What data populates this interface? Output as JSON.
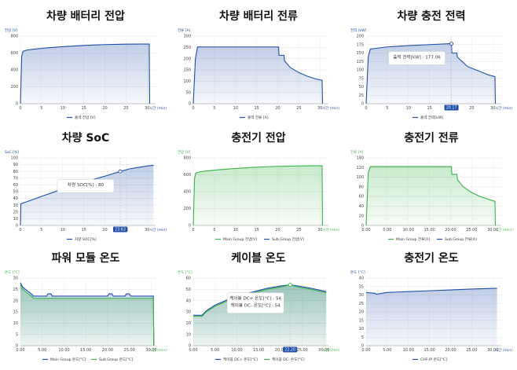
{
  "charts": [
    {
      "title": "차량 배터리 전압",
      "type": "area",
      "color": "#1f4fa8",
      "ylabel": "전압 [V]",
      "xlabel": "시간 (min)",
      "ylim": [
        0,
        800
      ],
      "yticks": [
        "0",
        "200",
        "400",
        "600",
        "800"
      ],
      "xlim": [
        0,
        32
      ],
      "xticks": [
        "0",
        "5",
        "10",
        "15",
        "20",
        "25",
        "30"
      ],
      "xtick_values": [
        0,
        5,
        10,
        15,
        20,
        25,
        30
      ],
      "series": [
        {
          "name": "출력 전압 [V]",
          "color": "#1f4fa8",
          "x": [
            0,
            0.3,
            0.6,
            1.5,
            3,
            6,
            10,
            15,
            20,
            25,
            28,
            30.5,
            30.6
          ],
          "y": [
            0,
            560,
            620,
            635,
            645,
            660,
            675,
            690,
            700,
            705,
            706,
            706,
            0
          ]
        }
      ],
      "tooltip": null
    },
    {
      "title": "차량 배터리 전류",
      "type": "area",
      "color": "#1f4fa8",
      "ylabel": "전류 [A]",
      "xlabel": "시간 (min)",
      "ylim": [
        0,
        300
      ],
      "yticks": [
        "0",
        "50",
        "100",
        "150",
        "200",
        "250",
        "300"
      ],
      "xlim": [
        0,
        32
      ],
      "xticks": [
        "0",
        "5",
        "10",
        "15",
        "20",
        "25",
        "30"
      ],
      "xtick_values": [
        0,
        5,
        10,
        15,
        20,
        25,
        30
      ],
      "series": [
        {
          "name": "출력 전류 [A]",
          "color": "#1f4fa8",
          "x": [
            0,
            0.5,
            1,
            20.2,
            20.3,
            21.5,
            21.6,
            23,
            25,
            27,
            29,
            30.5,
            30.6
          ],
          "y": [
            0,
            200,
            252,
            252,
            215,
            215,
            190,
            160,
            138,
            122,
            110,
            104,
            0
          ]
        }
      ],
      "tooltip": null
    },
    {
      "title": "차량 충전 전력",
      "type": "area",
      "color": "#1f4fa8",
      "ylabel": "전력 [kW]",
      "xlabel": "시간 (min)",
      "ylim": [
        0,
        200
      ],
      "yticks": [
        "0",
        "25",
        "50",
        "75",
        "100",
        "125",
        "150",
        "175",
        "200"
      ],
      "xlim": [
        0,
        32
      ],
      "xticks": [
        "0",
        "5",
        "10",
        "15",
        "20",
        "25",
        "30"
      ],
      "xtick_values": [
        0,
        5,
        10,
        15,
        20,
        25,
        30
      ],
      "series": [
        {
          "name": "출력 전력[kW]",
          "color": "#1f4fa8",
          "x": [
            0,
            0.5,
            1,
            5,
            10,
            15,
            20.2,
            20.3,
            21.5,
            21.6,
            24,
            27,
            29,
            30.5,
            30.6
          ],
          "y": [
            0,
            140,
            162,
            168,
            172,
            175,
            178,
            150,
            150,
            138,
            110,
            95,
            85,
            80,
            0
          ]
        }
      ],
      "tooltip": {
        "text": "출력 전력[kW] : 177.06",
        "x_value": 20.2,
        "y_value": 178,
        "x_label": "20.17"
      }
    },
    {
      "title": "차량 SoC",
      "type": "area",
      "color": "#1f4fa8",
      "ylabel": "SoC [%]",
      "xlabel": "시간 (min)",
      "ylim": [
        0,
        100
      ],
      "yticks": [
        "0",
        "10",
        "20",
        "30",
        "40",
        "50",
        "60",
        "70",
        "80",
        "90",
        "100"
      ],
      "xlim": [
        0,
        32
      ],
      "xticks": [
        "0",
        "5",
        "10",
        "15",
        "20",
        "25",
        "30"
      ],
      "xtick_values": [
        0,
        5,
        10,
        15,
        20,
        25,
        30
      ],
      "series": [
        {
          "name": "차량 SOC[%]",
          "color": "#1f4fa8",
          "x": [
            0,
            0.1,
            5,
            10,
            15,
            20,
            23.63,
            26,
            28,
            30,
            31.5
          ],
          "y": [
            0,
            32,
            43,
            54,
            64,
            73,
            80,
            84,
            86,
            88,
            89
          ]
        }
      ],
      "tooltip": {
        "text": "차량 SOC[%] : 80",
        "x_value": 23.63,
        "y_value": 80,
        "x_label": "23.63"
      }
    },
    {
      "title": "충전기 전압",
      "type": "area",
      "color": "#3bb34a",
      "ylabel": "전압 [V]",
      "xlabel": "시간 (min)",
      "ylim": [
        0,
        800
      ],
      "yticks": [
        "0",
        "200",
        "400",
        "600",
        "800"
      ],
      "xlim": [
        0,
        32
      ],
      "xticks": [
        "0",
        "5",
        "10",
        "15",
        "20",
        "25",
        "30"
      ],
      "xtick_values": [
        0,
        5,
        10,
        15,
        20,
        25,
        30
      ],
      "series": [
        {
          "name": "Main Group 전압[V]",
          "color": "#3bb34a",
          "x": [
            0,
            0.3,
            0.6,
            1.5,
            3,
            6,
            10,
            15,
            20,
            25,
            28,
            30.5,
            30.6
          ],
          "y": [
            0,
            560,
            620,
            635,
            645,
            660,
            675,
            690,
            700,
            705,
            706,
            706,
            0
          ]
        },
        {
          "name": "Sub Group 전압[V]",
          "color": "#1f4fa8",
          "values": []
        }
      ],
      "tooltip": null
    },
    {
      "title": "충전기 전류",
      "type": "area",
      "color": "#3bb34a",
      "ylabel": "전류 [A]",
      "xlabel": "시간 (min)",
      "ylim": [
        0,
        140
      ],
      "yticks": [
        "0",
        "20",
        "40",
        "60",
        "80",
        "100",
        "120",
        "140"
      ],
      "xlim": [
        0,
        32
      ],
      "xticks": [
        "0.00",
        "5.00",
        "10.00",
        "15.00",
        "20.00",
        "25.00",
        "30.00"
      ],
      "xtick_values": [
        0,
        5,
        10,
        15,
        20,
        25,
        30
      ],
      "series": [
        {
          "name": "Main Group 전류[A]",
          "color": "#3bb34a",
          "x": [
            0,
            0.5,
            1,
            20.2,
            20.3,
            21.5,
            21.6,
            23,
            25,
            27,
            29,
            30.5,
            30.6
          ],
          "y": [
            0,
            110,
            122,
            122,
            106,
            106,
            95,
            80,
            68,
            60,
            54,
            50,
            0
          ]
        },
        {
          "name": "Sub Group 전류[A]",
          "color": "#1f4fa8",
          "values": []
        }
      ],
      "tooltip": null
    },
    {
      "title": "파워 모듈 온도",
      "type": "area",
      "color": "#3bb34a",
      "ylabel": "온도 [°C]",
      "xlabel": "시간 (min)",
      "ylim": [
        0,
        30
      ],
      "yticks": [
        "0",
        "5",
        "10",
        "15",
        "20",
        "25",
        "30"
      ],
      "xlim": [
        0,
        31
      ],
      "xticks": [
        "0.00",
        "5.00",
        "10.00",
        "15.00",
        "20.00",
        "25.00",
        "30.00"
      ],
      "xtick_values": [
        0,
        5,
        10,
        15,
        20,
        25,
        30
      ],
      "series": [
        {
          "name": "Main Group 온도[°C]",
          "color": "#1f4fa8",
          "x": [
            0,
            0.5,
            1.5,
            2.5,
            3,
            4,
            6,
            6.3,
            7,
            7.3,
            10,
            20,
            20.3,
            21,
            21.3,
            24,
            24.3,
            25,
            25.3,
            30.5,
            30.6
          ],
          "y": [
            28,
            26,
            24.5,
            23,
            22,
            22,
            22,
            23,
            23,
            22,
            22,
            22,
            23,
            23,
            22,
            22,
            23,
            23,
            22,
            22,
            0
          ]
        },
        {
          "name": "Sub Group 온도[°C]",
          "color": "#3bb34a",
          "x": [
            0,
            0.5,
            1.5,
            2.5,
            3,
            4,
            10,
            20,
            30.5,
            30.6
          ],
          "y": [
            27,
            25,
            23.5,
            22,
            21,
            21,
            21,
            21,
            21,
            0
          ]
        }
      ],
      "tooltip": null
    },
    {
      "title": "케이블 온도",
      "type": "area",
      "color": "#3bb34a",
      "ylabel": "온도 [°C]",
      "xlabel": "시간 (min)",
      "ylim": [
        0,
        60
      ],
      "yticks": [
        "0",
        "10",
        "20",
        "30",
        "40",
        "50",
        "60"
      ],
      "xlim": [
        0,
        31
      ],
      "xticks": [
        "0.00",
        "5.00",
        "10.00",
        "15.00",
        "20.00",
        "25.00",
        "30.00"
      ],
      "xtick_values": [
        0,
        5,
        10,
        15,
        20,
        25,
        30
      ],
      "series": [
        {
          "name": "케이블 DC+ 온도[°C]",
          "color": "#1f4fa8",
          "x": [
            0,
            2,
            3,
            5,
            8,
            11,
            14,
            17,
            20,
            22.2,
            24,
            27,
            30.5
          ],
          "y": [
            27,
            27,
            31,
            36,
            41,
            45,
            48,
            51,
            53,
            54,
            53,
            51,
            48
          ]
        },
        {
          "name": "케이블 DC- 온도[°C]",
          "color": "#3bb34a",
          "x": [
            0,
            2,
            3,
            5,
            8,
            11,
            14,
            17,
            20,
            22.2,
            24,
            27,
            30.5
          ],
          "y": [
            26,
            26,
            30,
            35,
            40,
            44,
            47,
            50,
            52,
            54,
            52,
            50,
            47
          ]
        }
      ],
      "tooltip": {
        "lines": [
          "케이블 DC+ 온도[°C] : 54",
          "케이블 DC- 온도[°C] : 54"
        ],
        "x_value": 22.2,
        "y_value": 54,
        "x_label": "22.20"
      }
    },
    {
      "title": "충전기 온도",
      "type": "area",
      "color": "#1f4fa8",
      "ylabel": "온도 [°C]",
      "xlabel": "시간 (min)",
      "ylim": [
        0,
        40
      ],
      "yticks": [
        "0",
        "5",
        "10",
        "15",
        "20",
        "25",
        "30",
        "35",
        "40"
      ],
      "xlim": [
        0,
        32
      ],
      "xticks": [
        "0.00",
        "5.00",
        "10.00",
        "15.00",
        "20.00",
        "25.00",
        "30.00"
      ],
      "xtick_values": [
        0,
        5,
        10,
        15,
        20,
        25,
        30
      ],
      "series": [
        {
          "name": "CHF-IP 온도[°C]",
          "color": "#1f4fa8",
          "x": [
            0,
            2,
            2.5,
            5,
            10,
            15,
            20,
            25,
            31
          ],
          "y": [
            31.5,
            31,
            30.5,
            31.5,
            32,
            32.5,
            33,
            33.5,
            34
          ]
        }
      ],
      "tooltip": null
    }
  ]
}
